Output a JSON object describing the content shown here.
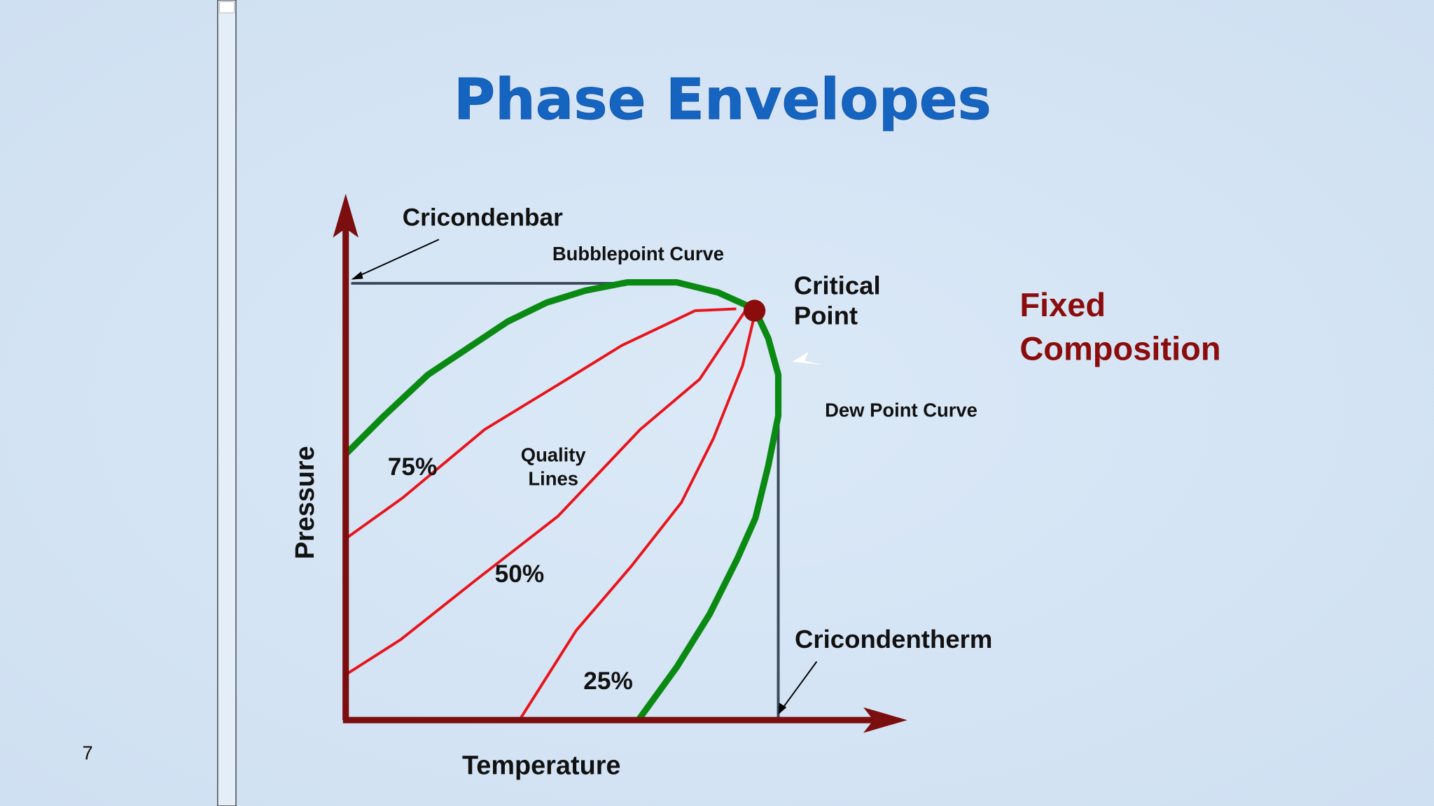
{
  "slide": {
    "title": "Phase Envelopes",
    "number": "7"
  },
  "diagram": {
    "axes": {
      "y": "Pressure",
      "x": "Temperature"
    },
    "labels": {
      "cricondenbar": "Cricondenbar",
      "bubblepoint": "Bubblepoint Curve",
      "critical_point": [
        "Critical",
        "Point"
      ],
      "dew_point": "Dew Point Curve",
      "quality_lines": [
        "Quality",
        "Lines"
      ],
      "q75": "75%",
      "q50": "50%",
      "q25": "25%",
      "cricondentherm": "Cricondentherm"
    }
  },
  "side_note": [
    "Fixed",
    "Composition"
  ]
}
